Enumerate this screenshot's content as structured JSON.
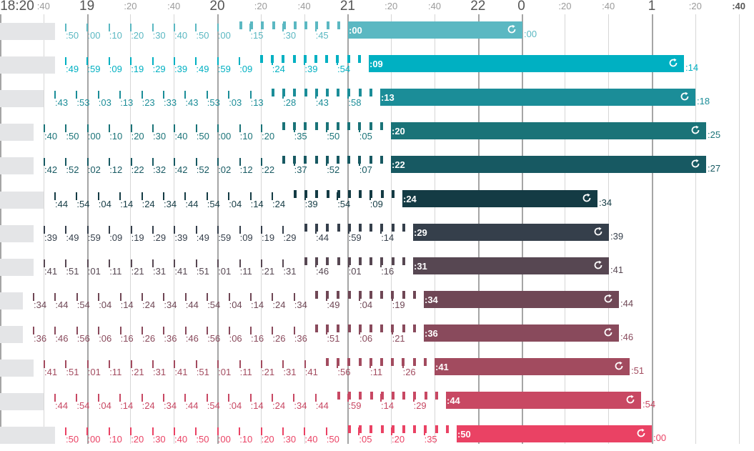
{
  "axis": {
    "ticks": [
      {
        "minute": 0,
        "label": "18:20",
        "hour": true
      },
      {
        "minute": 20,
        "label": ":40"
      },
      {
        "minute": 40,
        "label": "19",
        "hour": true
      },
      {
        "minute": 60,
        "label": ":20"
      },
      {
        "minute": 80,
        "label": ":40"
      },
      {
        "minute": 100,
        "label": "20",
        "hour": true
      },
      {
        "minute": 120,
        "label": ":20"
      },
      {
        "minute": 140,
        "label": ":40"
      },
      {
        "minute": 160,
        "label": "21",
        "hour": true
      },
      {
        "minute": 180,
        "label": ":20"
      },
      {
        "minute": 200,
        "label": ":40"
      },
      {
        "minute": 220,
        "label": "22",
        "hour": true
      },
      {
        "minute": 240,
        "label": "0",
        "hour": true
      },
      {
        "minute": 260,
        "label": ":20"
      },
      {
        "minute": 280,
        "label": ":40"
      },
      {
        "minute": 300,
        "label": "1",
        "hour": true
      },
      {
        "minute": 320,
        "label": ":20"
      },
      {
        "minute": 340,
        "label": ":40",
        "bold": true
      }
    ]
  },
  "rows": [
    {
      "color": "#5bb8c2",
      "stops": [
        ":50",
        ":00",
        ":10",
        ":20",
        ":30",
        ":40",
        ":50",
        ":00",
        ":15",
        ":30",
        ":45"
      ],
      "start_label": ":00",
      "end_label": ":00"
    },
    {
      "color": "#00b0c2",
      "stops": [
        ":49",
        ":59",
        ":09",
        ":19",
        ":29",
        ":39",
        ":49",
        ":59",
        ":09",
        ":24",
        ":39",
        ":54"
      ],
      "start_label": ":09",
      "end_label": ":14"
    },
    {
      "color": "#1b8d98",
      "stops": [
        ":43",
        ":53",
        ":03",
        ":13",
        ":23",
        ":33",
        ":43",
        ":53",
        ":03",
        ":13",
        ":28",
        ":43",
        ":58"
      ],
      "start_label": ":13",
      "end_label": ":18"
    },
    {
      "color": "#1a7378",
      "stops": [
        ":40",
        ":50",
        ":00",
        ":10",
        ":20",
        ":30",
        ":40",
        ":50",
        ":00",
        ":10",
        ":20",
        ":35",
        ":50",
        ":05"
      ],
      "start_label": ":20",
      "end_label": ":25"
    },
    {
      "color": "#175962",
      "stops": [
        ":42",
        ":52",
        ":02",
        ":12",
        ":22",
        ":32",
        ":42",
        ":52",
        ":02",
        ":12",
        ":22",
        ":37",
        ":52",
        ":07"
      ],
      "start_label": ":22",
      "end_label": ":27"
    },
    {
      "color": "#143b44",
      "stops": [
        ":44",
        ":54",
        ":04",
        ":14",
        ":24",
        ":34",
        ":44",
        ":54",
        ":04",
        ":14",
        ":24",
        ":39",
        ":54",
        ":09"
      ],
      "start_label": ":24",
      "end_label": ":34"
    },
    {
      "color": "#353f4b",
      "stops": [
        ":39",
        ":49",
        ":59",
        ":09",
        ":19",
        ":29",
        ":39",
        ":49",
        ":59",
        ":09",
        ":19",
        ":29",
        ":44",
        ":59",
        ":14"
      ],
      "start_label": ":29",
      "end_label": ":39"
    },
    {
      "color": "#574752",
      "stops": [
        ":41",
        ":51",
        ":01",
        ":11",
        ":21",
        ":31",
        ":41",
        ":51",
        ":01",
        ":11",
        ":21",
        ":31",
        ":46",
        ":01",
        ":16"
      ],
      "start_label": ":31",
      "end_label": ":41"
    },
    {
      "color": "#6f4755",
      "stops": [
        ":34",
        ":44",
        ":54",
        ":04",
        ":14",
        ":24",
        ":34",
        ":44",
        ":54",
        ":04",
        ":14",
        ":24",
        ":34",
        ":49",
        ":04",
        ":19"
      ],
      "start_label": ":34",
      "end_label": ":44"
    },
    {
      "color": "#894a5c",
      "stops": [
        ":36",
        ":46",
        ":56",
        ":06",
        ":16",
        ":26",
        ":36",
        ":46",
        ":56",
        ":06",
        ":16",
        ":26",
        ":36",
        ":51",
        ":06",
        ":21"
      ],
      "start_label": ":36",
      "end_label": ":46"
    },
    {
      "color": "#a24b5f",
      "stops": [
        ":41",
        ":51",
        ":01",
        ":11",
        ":21",
        ":31",
        ":41",
        ":51",
        ":01",
        ":11",
        ":21",
        ":31",
        ":41",
        ":56",
        ":11",
        ":26"
      ],
      "start_label": ":41",
      "end_label": ":51"
    },
    {
      "color": "#c84863",
      "stops": [
        ":44",
        ":54",
        ":04",
        ":14",
        ":24",
        ":34",
        ":44",
        ":54",
        ":04",
        ":14",
        ":24",
        ":34",
        ":44",
        ":59",
        ":14",
        ":29"
      ],
      "start_label": ":44",
      "end_label": ":54"
    },
    {
      "color": "#ea4264",
      "stops": [
        ":50",
        ":00",
        ":10",
        ":20",
        ":30",
        ":40",
        ":50",
        ":00",
        ":10",
        ":20",
        ":30",
        ":40",
        ":50",
        ":05",
        ":20",
        ":35"
      ],
      "start_label": ":50",
      "end_label": ":00"
    }
  ]
}
